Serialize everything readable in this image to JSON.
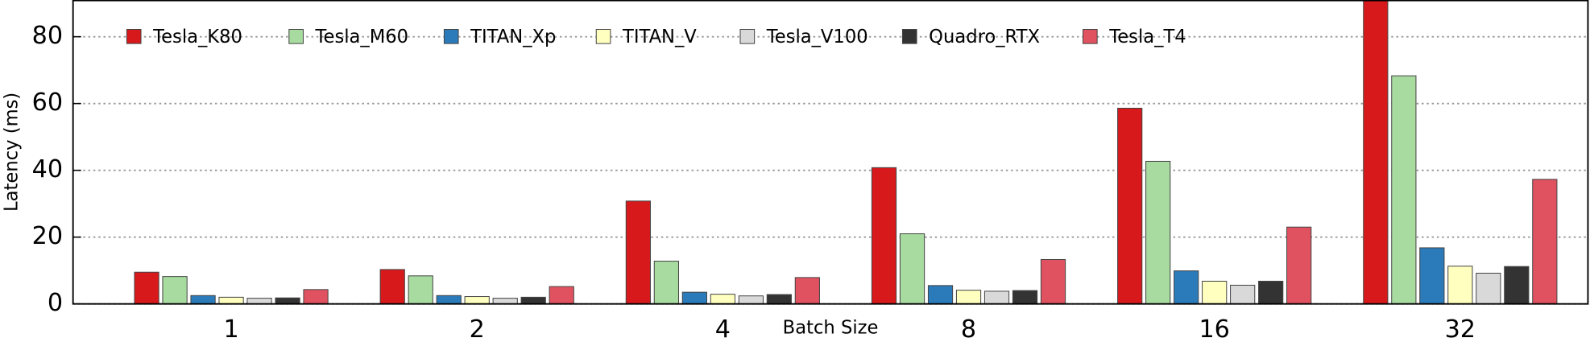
{
  "chart_data": {
    "type": "bar",
    "x_label": "Batch Size",
    "y_label": "Latency (ms)",
    "categories": [
      "1",
      "2",
      "4",
      "8",
      "16",
      "32"
    ],
    "series": [
      {
        "name": "Tesla_K80",
        "color": "#d7191c",
        "values": [
          9.5,
          10.3,
          30.8,
          40.8,
          58.6,
          92
        ]
      },
      {
        "name": "Tesla_M60",
        "color": "#a8dba0",
        "values": [
          8.2,
          8.4,
          12.8,
          21,
          42.7,
          68.3
        ]
      },
      {
        "name": "TITAN_Xp",
        "color": "#2b7bba",
        "values": [
          2.5,
          2.5,
          3.5,
          5.5,
          9.9,
          16.8
        ]
      },
      {
        "name": "TITAN_V",
        "color": "#ffffbf",
        "values": [
          2,
          2.2,
          2.9,
          4.1,
          6.8,
          11.3
        ]
      },
      {
        "name": "Tesla_V100",
        "color": "#d9d9d9",
        "values": [
          1.7,
          1.7,
          2.4,
          3.8,
          5.6,
          9.2
        ]
      },
      {
        "name": "Quadro_RTX",
        "color": "#333333",
        "values": [
          1.8,
          2.0,
          2.8,
          4.0,
          6.8,
          11.2
        ]
      },
      {
        "name": "Tesla_T4",
        "color": "#e05260",
        "values": [
          4.3,
          5.2,
          7.9,
          13.3,
          23,
          37.3
        ]
      }
    ],
    "ylim": [
      0,
      91
    ],
    "yticks": [
      0,
      20,
      40,
      60,
      80
    ],
    "grid": true
  }
}
